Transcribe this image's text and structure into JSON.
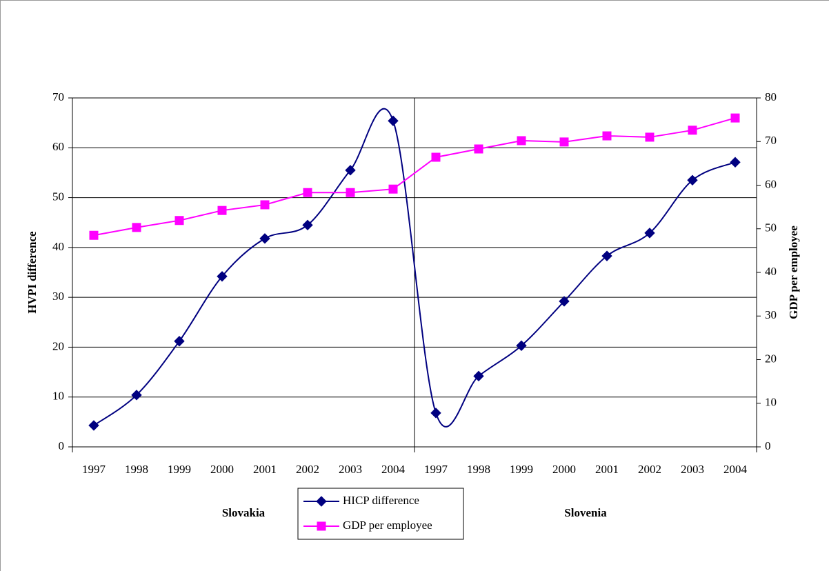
{
  "chart_data": {
    "type": "line",
    "categories": [
      "1997",
      "1998",
      "1999",
      "2000",
      "2001",
      "2002",
      "2003",
      "2004",
      "1997",
      "1998",
      "1999",
      "2000",
      "2001",
      "2002",
      "2003",
      "2004"
    ],
    "groups": [
      {
        "name": "Slovakia",
        "size": 8
      },
      {
        "name": "Slovenia",
        "size": 8
      }
    ],
    "y_label": "HVPI difference",
    "y2_label": "GDP per employee",
    "ylim": [
      0,
      70
    ],
    "yticks": [
      0,
      10,
      20,
      30,
      40,
      50,
      60,
      70
    ],
    "y2lim": [
      0,
      80
    ],
    "y2ticks": [
      0,
      10,
      20,
      30,
      40,
      50,
      60,
      70,
      80
    ],
    "grid": true,
    "series": [
      {
        "name": "HICP difference",
        "color": "#000080",
        "marker": "diamond",
        "smooth": true,
        "values": [
          4.3,
          10.4,
          21.2,
          34.2,
          41.8,
          44.5,
          55.5,
          65.4,
          6.8,
          14.2,
          20.3,
          29.2,
          38.3,
          42.9,
          53.5,
          57.1
        ]
      },
      {
        "name": "GDP per employee",
        "color": "#ff00ff",
        "marker": "square",
        "smooth": false,
        "axis": "y2",
        "values": [
          48.5,
          50.3,
          51.9,
          54.2,
          55.5,
          58.3,
          58.3,
          59.1,
          66.4,
          68.3,
          70.2,
          69.9,
          71.3,
          71.0,
          72.6,
          75.4
        ]
      }
    ]
  }
}
